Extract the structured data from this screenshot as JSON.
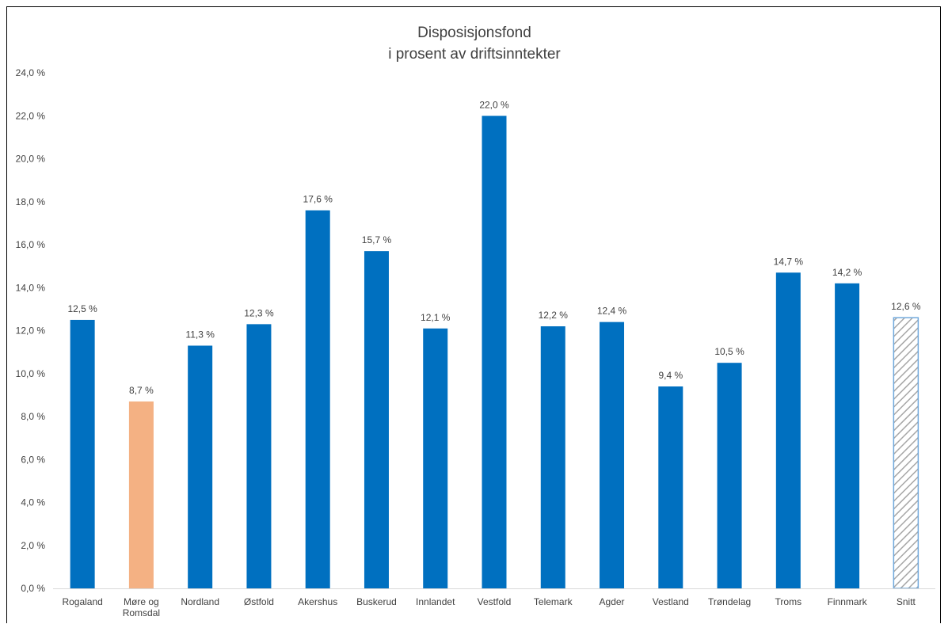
{
  "chart_data": {
    "type": "bar",
    "title": [
      "Disposisjonsfond",
      "i prosent av driftsinntekter"
    ],
    "categories": [
      [
        "Rogaland"
      ],
      [
        "Møre og",
        "Romsdal"
      ],
      [
        "Nordland"
      ],
      [
        "Østfold"
      ],
      [
        "Akershus"
      ],
      [
        "Buskerud"
      ],
      [
        "Innlandet"
      ],
      [
        "Vestfold"
      ],
      [
        "Telemark"
      ],
      [
        "Agder"
      ],
      [
        "Vestland"
      ],
      [
        "Trøndelag"
      ],
      [
        "Troms"
      ],
      [
        "Finnmark"
      ],
      [
        "Snitt"
      ]
    ],
    "values": [
      12.5,
      8.7,
      11.3,
      12.3,
      17.6,
      15.7,
      12.1,
      22.0,
      12.2,
      12.4,
      9.4,
      10.5,
      14.7,
      14.2,
      12.6
    ],
    "data_labels": [
      "12,5 %",
      "8,7 %",
      "11,3 %",
      "12,3 %",
      "17,6 %",
      "15,7 %",
      "12,1 %",
      "22,0 %",
      "12,2 %",
      "12,4 %",
      "9,4 %",
      "10,5 %",
      "14,7 %",
      "14,2 %",
      "12,6 %"
    ],
    "bar_styles": [
      "solid",
      "highlight",
      "solid",
      "solid",
      "solid",
      "solid",
      "solid",
      "solid",
      "solid",
      "solid",
      "solid",
      "solid",
      "solid",
      "solid",
      "hatched"
    ],
    "ylim": [
      0,
      24
    ],
    "yticks": [
      0,
      2,
      4,
      6,
      8,
      10,
      12,
      14,
      16,
      18,
      20,
      22,
      24
    ],
    "ytick_labels": [
      "0,0 %",
      "2,0 %",
      "4,0 %",
      "6,0 %",
      "8,0 %",
      "10,0 %",
      "12,0 %",
      "14,0 %",
      "16,0 %",
      "18,0 %",
      "20,0 %",
      "22,0 %",
      "24,0 %"
    ],
    "xlabel": "",
    "ylabel": "",
    "grid": false,
    "legend": "none",
    "colors": {
      "bar": "#0070C0",
      "highlight": "#F4B183",
      "hatch_stroke": "#6FA8DC",
      "hatch_line": "#A6A6A6",
      "axis": "#D9D9D9",
      "text": "#404040"
    }
  }
}
